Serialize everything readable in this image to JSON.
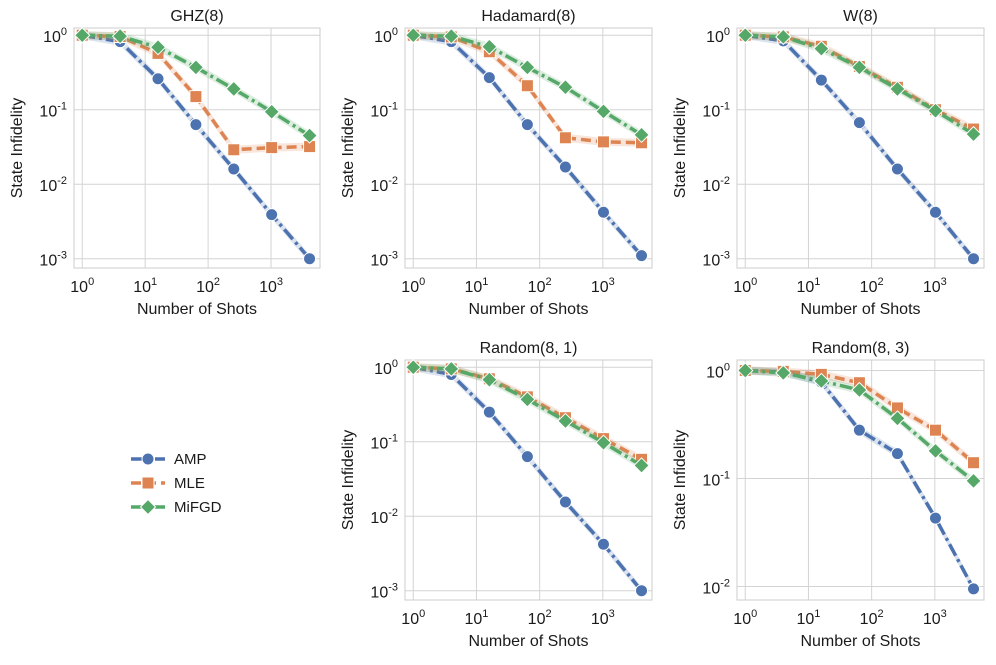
{
  "chart_data": [
    {
      "type": "line",
      "title": "GHZ(8)",
      "xlabel": "Number of Shots",
      "ylabel": "State Infidelity",
      "xscale": "log",
      "yscale": "log",
      "xlim": [
        0.74,
        6000
      ],
      "ylim": [
        0.00075,
        1.25
      ],
      "x": [
        1,
        4,
        16,
        64,
        256,
        1024,
        4096
      ],
      "xticks": [
        1,
        10,
        100,
        1000
      ],
      "yticks": [
        0.001,
        0.01,
        0.1,
        1
      ],
      "grid": true,
      "series": [
        {
          "name": "AMP",
          "values": [
            1.0,
            0.82,
            0.26,
            0.063,
            0.016,
            0.0039,
            0.001
          ]
        },
        {
          "name": "MLE",
          "values": [
            1.0,
            0.96,
            0.57,
            0.15,
            0.029,
            0.031,
            0.032
          ]
        },
        {
          "name": "MiFGD",
          "values": [
            1.0,
            0.97,
            0.69,
            0.37,
            0.19,
            0.094,
            0.045
          ]
        }
      ]
    },
    {
      "type": "line",
      "title": "Hadamard(8)",
      "xlabel": "Number of Shots",
      "ylabel": "State Infidelity",
      "xscale": "log",
      "yscale": "log",
      "xlim": [
        0.74,
        6000
      ],
      "ylim": [
        0.00075,
        1.25
      ],
      "x": [
        1,
        4,
        16,
        64,
        256,
        1024,
        4096
      ],
      "xticks": [
        1,
        10,
        100,
        1000
      ],
      "yticks": [
        0.001,
        0.01,
        0.1,
        1
      ],
      "grid": true,
      "series": [
        {
          "name": "AMP",
          "values": [
            1.0,
            0.82,
            0.27,
            0.063,
            0.017,
            0.0042,
            0.0011
          ]
        },
        {
          "name": "MLE",
          "values": [
            1.0,
            0.95,
            0.6,
            0.21,
            0.042,
            0.037,
            0.036
          ]
        },
        {
          "name": "MiFGD",
          "values": [
            1.0,
            0.97,
            0.7,
            0.37,
            0.2,
            0.095,
            0.046
          ]
        }
      ]
    },
    {
      "type": "line",
      "title": "W(8)",
      "xlabel": "Number of Shots",
      "ylabel": "State Infidelity",
      "xscale": "log",
      "yscale": "log",
      "xlim": [
        0.74,
        6000
      ],
      "ylim": [
        0.00075,
        1.25
      ],
      "x": [
        1,
        4,
        16,
        64,
        256,
        1024,
        4096
      ],
      "xticks": [
        1,
        10,
        100,
        1000
      ],
      "yticks": [
        0.001,
        0.01,
        0.1,
        1
      ],
      "grid": true,
      "series": [
        {
          "name": "AMP",
          "values": [
            1.0,
            0.84,
            0.25,
            0.067,
            0.016,
            0.0042,
            0.001
          ]
        },
        {
          "name": "MLE",
          "values": [
            1.0,
            0.95,
            0.71,
            0.38,
            0.2,
            0.1,
            0.055
          ]
        },
        {
          "name": "MiFGD",
          "values": [
            1.0,
            0.95,
            0.66,
            0.37,
            0.19,
            0.097,
            0.047
          ]
        }
      ]
    },
    {
      "type": "line",
      "title": "Random(8, 1)",
      "xlabel": "Number of Shots",
      "ylabel": "State Infidelity",
      "xscale": "log",
      "yscale": "log",
      "xlim": [
        0.74,
        6000
      ],
      "ylim": [
        0.00075,
        1.25
      ],
      "x": [
        1,
        4,
        16,
        64,
        256,
        1024,
        4096
      ],
      "xticks": [
        1,
        10,
        100,
        1000
      ],
      "yticks": [
        0.001,
        0.01,
        0.1,
        1
      ],
      "grid": true,
      "series": [
        {
          "name": "AMP",
          "values": [
            1.0,
            0.8,
            0.25,
            0.063,
            0.0155,
            0.0042,
            0.001
          ]
        },
        {
          "name": "MLE",
          "values": [
            1.0,
            0.95,
            0.7,
            0.4,
            0.21,
            0.11,
            0.058
          ]
        },
        {
          "name": "MiFGD",
          "values": [
            1.0,
            0.95,
            0.68,
            0.37,
            0.19,
            0.097,
            0.048
          ]
        }
      ]
    },
    {
      "type": "line",
      "title": "Random(8, 3)",
      "xlabel": "Number of Shots",
      "ylabel": "State Infidelity",
      "xscale": "log",
      "yscale": "log",
      "xlim": [
        0.74,
        6000
      ],
      "ylim": [
        0.0075,
        1.25
      ],
      "x": [
        1,
        4,
        16,
        64,
        256,
        1024,
        4096
      ],
      "xticks": [
        1,
        10,
        100,
        1000
      ],
      "yticks": [
        0.01,
        0.1,
        1
      ],
      "grid": true,
      "series": [
        {
          "name": "AMP",
          "values": [
            1.0,
            0.97,
            0.78,
            0.28,
            0.17,
            0.043,
            0.0095
          ]
        },
        {
          "name": "MLE",
          "values": [
            1.0,
            0.98,
            0.92,
            0.77,
            0.45,
            0.28,
            0.14
          ]
        },
        {
          "name": "MiFGD",
          "values": [
            1.0,
            0.95,
            0.8,
            0.66,
            0.36,
            0.18,
            0.095
          ]
        }
      ]
    }
  ],
  "legend": {
    "items": [
      {
        "label": "AMP",
        "color": "#4c72b0",
        "marker": "circle",
        "dash": "dash-dot"
      },
      {
        "label": "MLE",
        "color": "#dd8452",
        "marker": "square",
        "dash": "dashed"
      },
      {
        "label": "MiFGD",
        "color": "#55a868",
        "marker": "diamond",
        "dash": "dash-dot"
      }
    ]
  },
  "colors": {
    "AMP": "#4c72b0",
    "MLE": "#dd8452",
    "MiFGD": "#55a868",
    "grid": "#d4d4d4",
    "spine": "#cccccc"
  }
}
